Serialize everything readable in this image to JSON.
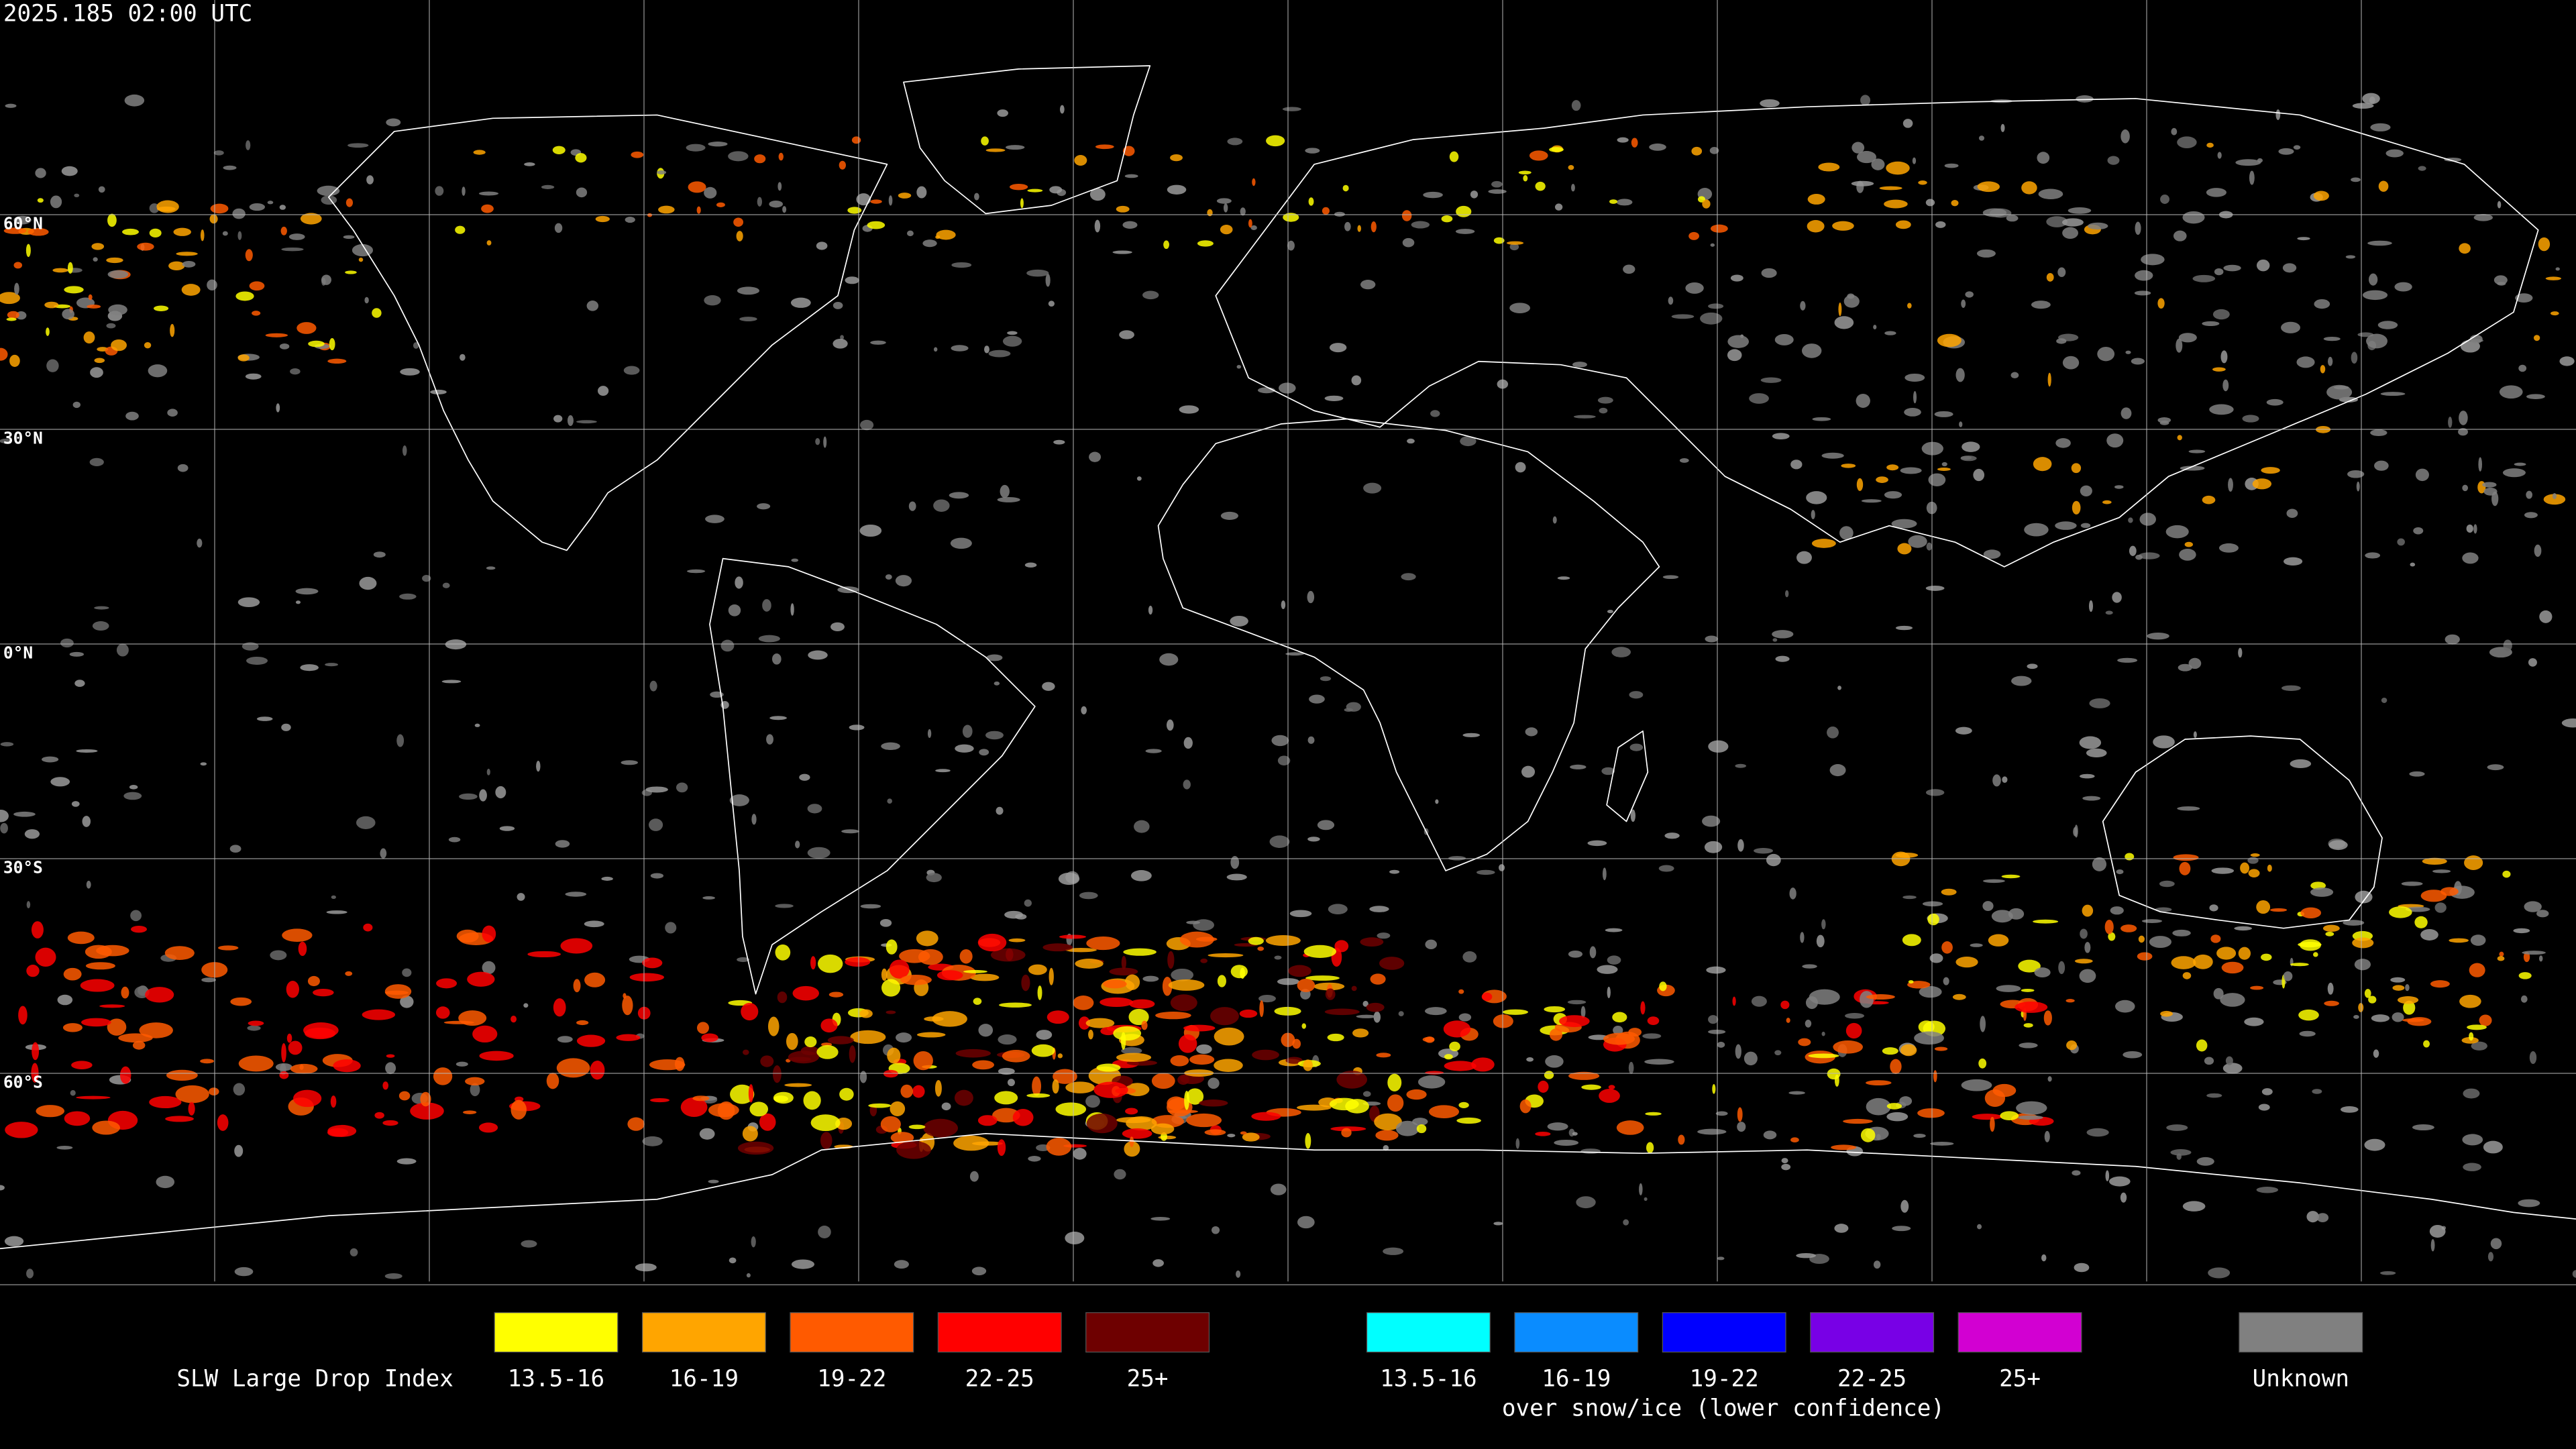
{
  "header": {
    "timestamp": "2025.185 02:00 UTC"
  },
  "map": {
    "latitude_labels": [
      "60°N",
      "30°N",
      "0°N",
      "30°S",
      "60°S"
    ]
  },
  "legend": {
    "title": "SLW Large Drop Index",
    "groups": [
      {
        "items": [
          {
            "label": "13.5-16",
            "color": "#ffff00"
          },
          {
            "label": "16-19",
            "color": "#ffa500"
          },
          {
            "label": "19-22",
            "color": "#ff5a00"
          },
          {
            "label": "22-25",
            "color": "#ff0000"
          },
          {
            "label": "25+",
            "color": "#6e0000"
          }
        ]
      },
      {
        "items": [
          {
            "label": "13.5-16",
            "color": "#00ffff"
          },
          {
            "label": "16-19",
            "color": "#0a8cff"
          },
          {
            "label": "19-22",
            "color": "#0000ff"
          },
          {
            "label": "22-25",
            "color": "#7800e6"
          },
          {
            "label": "25+",
            "color": "#d200d2"
          }
        ],
        "caption": "over snow/ice (lower confidence)"
      },
      {
        "items": [
          {
            "label": "Unknown",
            "color": "#808080"
          }
        ]
      }
    ]
  }
}
